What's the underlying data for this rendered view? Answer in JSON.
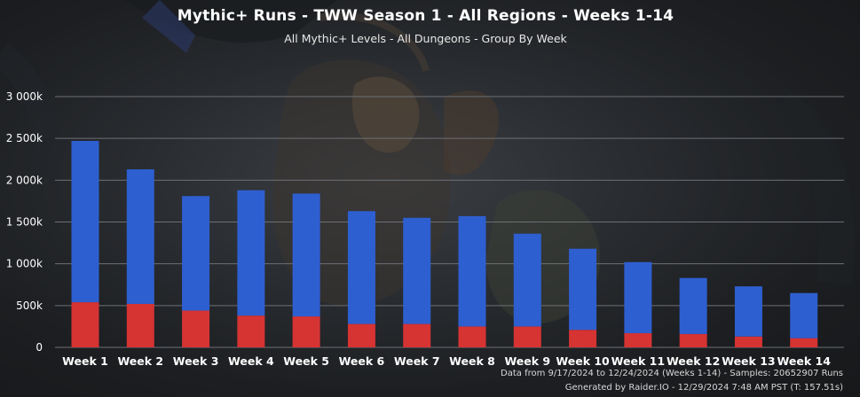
{
  "header": {
    "title": "Mythic+ Runs - TWW Season 1 - All Regions - Weeks 1-14",
    "subtitle": "All Mythic+ Levels - All Dungeons - Group By Week"
  },
  "credits": {
    "data_range": "Data from 9/17/2024 to 12/24/2024 (Weeks 1-14) - Samples: 20652907 Runs",
    "generated": "Generated by Raider.IO - 12/29/2024 7:48 AM PST (T: 157.51s)"
  },
  "colors": {
    "lower_series": "#d63333",
    "upper_series": "#2e5fd0",
    "gridline": "#6c6f74",
    "background": "#2a2d31"
  },
  "chart_data": {
    "type": "bar",
    "stacked": true,
    "title": "Mythic+ Runs - TWW Season 1 - All Regions - Weeks 1-14",
    "subtitle": "All Mythic+ Levels - All Dungeons - Group By Week",
    "xlabel": "",
    "ylabel": "",
    "ylim": [
      0,
      3000000
    ],
    "y_ticks": [
      0,
      500000,
      1000000,
      1500000,
      2000000,
      2500000,
      3000000
    ],
    "y_tick_labels": [
      "0",
      "500k",
      "1 000k",
      "1 500k",
      "2 000k",
      "2 500k",
      "3 000k"
    ],
    "grid": true,
    "legend": "none",
    "categories": [
      "Week 1",
      "Week 2",
      "Week 3",
      "Week 4",
      "Week 5",
      "Week 6",
      "Week 7",
      "Week 8",
      "Week 9",
      "Week 10",
      "Week 11",
      "Week 12",
      "Week 13",
      "Week 14"
    ],
    "series": [
      {
        "color": "#d63333",
        "values": [
          540000,
          520000,
          440000,
          380000,
          370000,
          280000,
          280000,
          250000,
          250000,
          210000,
          170000,
          160000,
          130000,
          110000
        ]
      },
      {
        "color": "#2e5fd0",
        "values": [
          1930000,
          1610000,
          1370000,
          1500000,
          1470000,
          1350000,
          1270000,
          1320000,
          1110000,
          970000,
          850000,
          670000,
          600000,
          540000
        ]
      }
    ]
  }
}
